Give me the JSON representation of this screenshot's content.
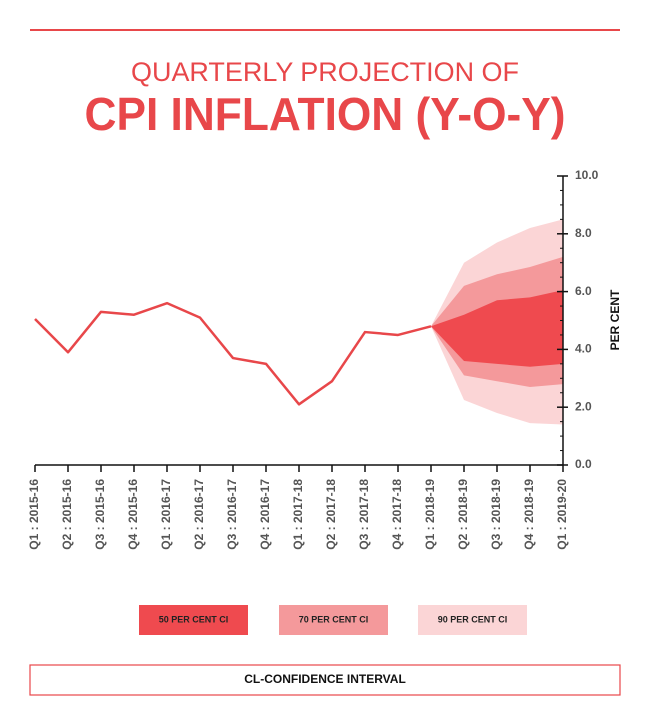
{
  "chart_data": {
    "type": "fan",
    "title": "QUARTERLY PROJECTION OF",
    "subtitle": "CPI INFLATION (Y-O-Y)",
    "y_label": "PER CENT",
    "footer": "CL-CONFIDENCE INTERVAL",
    "categories": [
      "Q1 : 2015-16",
      "Q2 : 2015-16",
      "Q3 : 2015-16",
      "Q4 : 2015-16",
      "Q1 : 2016-17",
      "Q2 : 2016-17",
      "Q3 : 2016-17",
      "Q4 : 2016-17",
      "Q1 : 2017-18",
      "Q2 : 2017-18",
      "Q3 : 2017-18",
      "Q4 : 2017-18",
      "Q1 : 2018-19",
      "Q2 : 2018-19",
      "Q3 : 2018-19",
      "Q4 : 2018-19",
      "Q1 : 2019-20"
    ],
    "values": [
      5.05,
      3.9,
      5.3,
      5.2,
      5.6,
      5.1,
      3.7,
      3.5,
      2.1,
      2.9,
      4.6,
      4.5,
      4.8,
      null,
      null,
      null,
      null
    ],
    "color": "#e8474a",
    "bands": [
      {
        "name": "90 PER CENT CI",
        "color": "#fbd5d6",
        "upper": [
          null,
          null,
          null,
          null,
          null,
          null,
          null,
          null,
          null,
          null,
          null,
          null,
          4.8,
          7.0,
          7.7,
          8.2,
          8.5
        ],
        "lower": [
          null,
          null,
          null,
          null,
          null,
          null,
          null,
          null,
          null,
          null,
          null,
          null,
          4.8,
          2.25,
          1.8,
          1.45,
          1.4
        ]
      },
      {
        "name": "70 PER CENT CI",
        "color": "#f4999b",
        "upper": [
          null,
          null,
          null,
          null,
          null,
          null,
          null,
          null,
          null,
          null,
          null,
          null,
          4.8,
          6.2,
          6.6,
          6.85,
          7.2
        ],
        "lower": [
          null,
          null,
          null,
          null,
          null,
          null,
          null,
          null,
          null,
          null,
          null,
          null,
          4.8,
          3.1,
          2.9,
          2.7,
          2.8
        ]
      },
      {
        "name": "50 PER CENT CI",
        "color": "#ef4a4f",
        "upper": [
          null,
          null,
          null,
          null,
          null,
          null,
          null,
          null,
          null,
          null,
          null,
          null,
          4.8,
          5.2,
          5.7,
          5.8,
          6.05
        ],
        "lower": [
          null,
          null,
          null,
          null,
          null,
          null,
          null,
          null,
          null,
          null,
          null,
          null,
          4.8,
          3.6,
          3.5,
          3.4,
          3.5
        ]
      }
    ],
    "ylim": [
      0,
      10
    ],
    "yticks": [
      {
        "value": 0,
        "label": "0.0"
      },
      {
        "value": 2,
        "label": "2.0"
      },
      {
        "value": 4,
        "label": "4.0"
      },
      {
        "value": 6,
        "label": "6.0"
      },
      {
        "value": 8,
        "label": "8.0"
      },
      {
        "value": 10,
        "label": "10.0"
      }
    ],
    "legend_order": [
      2,
      1,
      0
    ]
  }
}
